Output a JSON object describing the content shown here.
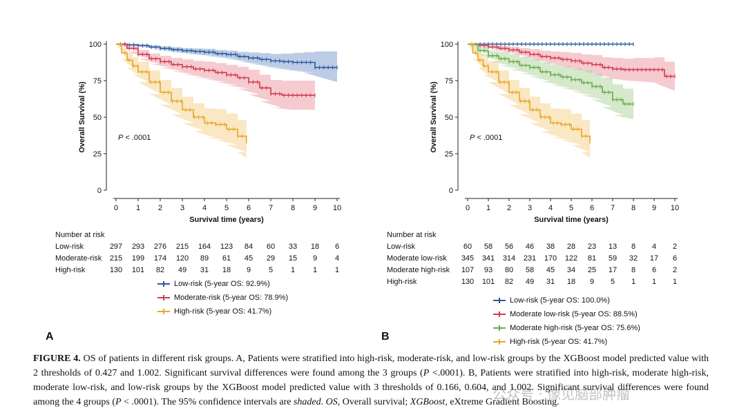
{
  "chart_data": [
    {
      "id": "A",
      "type": "line",
      "subtype": "kaplan-meier",
      "panel_label": "A",
      "xlabel": "Survival time (years)",
      "ylabel": "Overall Survival (%)",
      "xlim": [
        0,
        10
      ],
      "ylim": [
        0,
        100
      ],
      "xticks": [
        0,
        1,
        2,
        3,
        4,
        5,
        6,
        7,
        8,
        9,
        10
      ],
      "yticks": [
        0,
        25,
        50,
        75,
        100
      ],
      "annotation": "P < .0001",
      "annotation_prefix": "P",
      "annotation_suffix": " < .0001",
      "legend_position": "below",
      "series": [
        {
          "name": "Low-risk (5-year OS: 92.9%)",
          "color": "#2a5a9c",
          "band_color": "#6b8fc6",
          "x": [
            0,
            0.5,
            1,
            1.5,
            2,
            2.5,
            3,
            3.5,
            4,
            4.5,
            5,
            5.5,
            6,
            6.5,
            7,
            7.5,
            8,
            8.5,
            9,
            10
          ],
          "y": [
            100,
            99.5,
            99,
            98,
            97,
            96.2,
            95.5,
            95,
            94.5,
            93.5,
            92.9,
            91.5,
            90.5,
            89.5,
            88.5,
            88,
            87.5,
            87.5,
            84,
            84
          ],
          "lower": [
            100,
            99,
            98,
            96.8,
            95.5,
            94.5,
            93.5,
            92.7,
            92,
            90.8,
            90,
            88,
            86.5,
            85,
            83.5,
            82.5,
            81.5,
            80.5,
            74,
            74
          ],
          "upper": [
            100,
            100,
            99.8,
            99.2,
            98.5,
            97.8,
            97.3,
            97,
            96.8,
            96,
            95.5,
            94.7,
            94.2,
            93.8,
            93.3,
            93.5,
            94,
            94.5,
            95,
            95
          ]
        },
        {
          "name": "Moderate-risk (5-year OS: 78.9%)",
          "color": "#d03a4e",
          "band_color": "#e88b96",
          "x": [
            0,
            0.5,
            1,
            1.5,
            2,
            2.5,
            3,
            3.5,
            4,
            4.5,
            5,
            5.5,
            6,
            6.5,
            7,
            7.5,
            8,
            8.5,
            9
          ],
          "y": [
            100,
            97,
            93,
            90,
            88,
            86,
            84.5,
            83,
            82,
            80.5,
            78.9,
            77,
            74,
            70,
            66,
            65,
            65,
            65,
            65
          ],
          "lower": [
            100,
            95,
            90,
            86.5,
            84,
            81.5,
            79.5,
            77.5,
            76,
            74,
            72,
            69.5,
            65.5,
            61,
            56.5,
            55,
            55,
            55,
            55
          ],
          "upper": [
            100,
            99,
            96,
            93.5,
            92,
            90.5,
            89.5,
            88.5,
            88,
            87,
            85.8,
            84.5,
            82.5,
            79,
            75.5,
            75,
            75,
            75,
            75
          ]
        },
        {
          "name": "High-risk (5-year OS: 41.7%)",
          "color": "#e8a62a",
          "band_color": "#f3c97a",
          "x": [
            0,
            0.25,
            0.5,
            0.75,
            1,
            1.5,
            2,
            2.5,
            3,
            3.5,
            4,
            4.5,
            5,
            5.5,
            5.9
          ],
          "y": [
            100,
            94,
            89,
            85,
            81,
            74,
            67,
            61,
            55,
            50,
            46,
            45,
            41.7,
            37,
            33
          ],
          "lower": [
            100,
            90,
            84,
            79,
            74,
            66,
            58.5,
            52,
            46,
            40.5,
            36,
            34.5,
            31,
            26,
            22
          ],
          "upper": [
            100,
            97.5,
            94,
            91,
            88,
            82,
            75.5,
            70,
            64,
            59.5,
            56,
            55.5,
            52.5,
            48,
            44
          ]
        }
      ],
      "risk_table": {
        "title": "Number at risk",
        "rows": [
          {
            "label": "Low-risk",
            "values": [
              297,
              293,
              276,
              215,
              164,
              123,
              84,
              60,
              33,
              18,
              6
            ]
          },
          {
            "label": "Moderate-risk",
            "values": [
              215,
              199,
              174,
              120,
              89,
              61,
              45,
              29,
              15,
              9,
              4
            ]
          },
          {
            "label": "High-risk",
            "values": [
              130,
              101,
              82,
              49,
              31,
              18,
              9,
              5,
              1,
              1,
              1
            ]
          }
        ]
      }
    },
    {
      "id": "B",
      "type": "line",
      "subtype": "kaplan-meier",
      "panel_label": "B",
      "xlabel": "Survival time (years)",
      "ylabel": "Overall Survival (%)",
      "xlim": [
        0,
        10
      ],
      "ylim": [
        0,
        100
      ],
      "xticks": [
        0,
        1,
        2,
        3,
        4,
        5,
        6,
        7,
        8,
        9,
        10
      ],
      "yticks": [
        0,
        25,
        50,
        75,
        100
      ],
      "annotation": "P < .0001",
      "annotation_prefix": "P",
      "annotation_suffix": " < .0001",
      "legend_position": "below",
      "series": [
        {
          "name": "Low-risk (5-year OS: 100.0%)",
          "color": "#2a5a9c",
          "band_color": "#6b8fc6",
          "x": [
            0,
            8
          ],
          "y": [
            100,
            100
          ],
          "lower": [
            100,
            100
          ],
          "upper": [
            100,
            100
          ]
        },
        {
          "name": "Moderate low-risk (5-year OS: 88.5%)",
          "color": "#d03a4e",
          "band_color": "#e88b96",
          "x": [
            0,
            0.5,
            1,
            1.5,
            2,
            2.5,
            3,
            3.5,
            4,
            4.5,
            5,
            5.5,
            6,
            6.5,
            7,
            7.5,
            8,
            8.5,
            9,
            9.5,
            10
          ],
          "y": [
            100,
            99,
            98,
            97,
            96,
            94.5,
            93,
            91.5,
            90.5,
            89.5,
            88.5,
            87,
            86,
            84,
            83,
            82.5,
            82.5,
            82.5,
            82.5,
            78,
            78
          ],
          "lower": [
            100,
            98,
            96.5,
            95,
            93.5,
            91.5,
            89.5,
            87.5,
            86,
            84.5,
            83,
            81,
            79.5,
            77,
            75.5,
            75,
            74.5,
            74,
            73.5,
            68,
            68
          ],
          "upper": [
            100,
            100,
            99.5,
            98.8,
            98.2,
            97.3,
            96.5,
            95.5,
            95,
            94.5,
            94,
            93,
            92.5,
            91,
            90.5,
            90,
            90.5,
            90.5,
            91,
            88,
            88
          ]
        },
        {
          "name": "Moderate high-risk (5-year OS: 75.6%)",
          "color": "#6aaa4a",
          "band_color": "#a3cf8d",
          "x": [
            0,
            0.5,
            1,
            1.5,
            2,
            2.5,
            3,
            3.5,
            4,
            4.5,
            5,
            5.5,
            6,
            6.5,
            7,
            7.5,
            8
          ],
          "y": [
            100,
            95.5,
            92,
            90,
            88,
            85.5,
            84,
            81,
            79,
            77.5,
            75.6,
            73.5,
            71,
            67,
            62,
            59,
            59
          ],
          "lower": [
            100,
            93,
            88.5,
            85.5,
            83,
            80,
            78,
            74.5,
            72,
            70,
            67.5,
            65,
            62,
            57,
            51.5,
            48.5,
            48.5
          ],
          "upper": [
            100,
            98,
            95.5,
            94.5,
            93,
            91,
            90,
            87.5,
            86,
            85,
            83.5,
            82,
            80,
            77,
            72.5,
            69.5,
            69.5
          ]
        },
        {
          "name": "High-risk (5-year OS: 41.7%)",
          "color": "#e8a62a",
          "band_color": "#f3c97a",
          "x": [
            0,
            0.25,
            0.5,
            0.75,
            1,
            1.5,
            2,
            2.5,
            3,
            3.5,
            4,
            4.5,
            5,
            5.5,
            5.9
          ],
          "y": [
            100,
            94,
            89,
            85,
            81,
            74,
            67,
            61,
            55,
            50,
            46,
            45,
            41.7,
            37,
            33
          ],
          "lower": [
            100,
            90,
            84,
            79,
            74,
            66,
            58.5,
            52,
            46,
            40.5,
            36,
            34.5,
            31,
            26,
            22
          ],
          "upper": [
            100,
            97.5,
            94,
            91,
            88,
            82,
            75.5,
            70,
            64,
            59.5,
            56,
            55.5,
            52.5,
            48,
            44
          ]
        }
      ],
      "risk_table": {
        "title": "Number at risk",
        "rows": [
          {
            "label": "Low-risk",
            "values": [
              60,
              58,
              56,
              46,
              38,
              28,
              23,
              13,
              8,
              4,
              2
            ]
          },
          {
            "label": "Moderate low-risk",
            "values": [
              345,
              341,
              314,
              231,
              170,
              122,
              81,
              59,
              32,
              17,
              6
            ]
          },
          {
            "label": "Moderate high-risk",
            "values": [
              107,
              93,
              80,
              58,
              45,
              34,
              25,
              17,
              8,
              6,
              2
            ]
          },
          {
            "label": "High-risk",
            "values": [
              130,
              101,
              82,
              49,
              31,
              18,
              9,
              5,
              1,
              1,
              1
            ]
          }
        ]
      }
    }
  ],
  "caption": {
    "label": "FIGURE 4.",
    "text_1": " OS of patients in different risk groups. A, Patients were stratified into high-risk, moderate-risk, and low-risk groups by the XGBoost model predicted value with 2 thresholds of 0.427 and 1.002. Significant survival differences were found among the 3 groups (",
    "p_italic_1": "P",
    "text_2": " <.0001). B, Patients were stratified into high-risk, moderate high-risk, moderate low-risk, and low-risk groups by the XGBoost model predicted value with 3 thresholds of 0.166, 0.604, and 1.002. Significant survival differences were found among the 4 groups (",
    "p_italic_2": "P",
    "text_3": " < .0001). The 95% confidence intervals are ",
    "shaded_italic": "shaded",
    "text_4": ". ",
    "os_italic": "OS",
    "text_5": ", Overall survival; ",
    "xgb_italic": "XGBoost",
    "text_6": ", eXtreme Gradient Boosting."
  },
  "watermark": "公众号 · 像见脑部肿瘤"
}
